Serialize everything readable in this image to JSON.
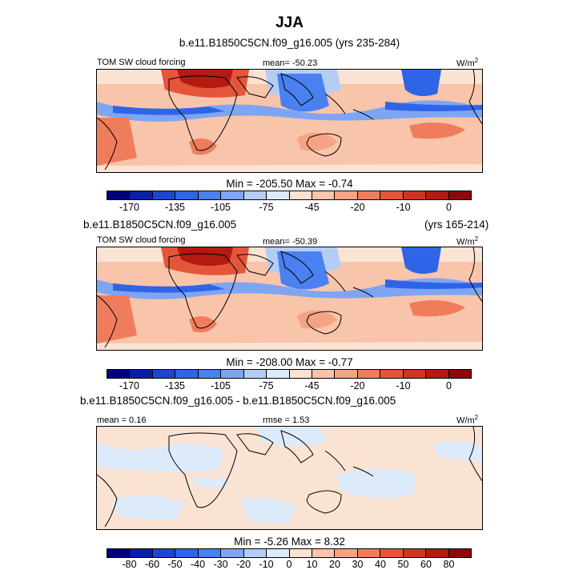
{
  "title": "JJA",
  "panels": [
    {
      "case_title": "b.e11.B1850C5CN.f09_g16.005 (yrs 235-284)",
      "left_label": "TOM SW cloud forcing",
      "mean_label": "mean= -50.23",
      "units": "W/m",
      "units_sup": "2",
      "minmax": "Min = -205.50 Max =  -0.74",
      "colorbar_ticks": [
        "-170",
        "-135",
        "-105",
        "-75",
        "-45",
        "-20",
        "-10",
        "0"
      ]
    },
    {
      "case_title": "b.e11.B1850C5CN.f09_g16.005",
      "case_years": "(yrs 165-214)",
      "left_label": "TOM SW cloud forcing",
      "mean_label": "mean= -50.39",
      "units": "W/m",
      "units_sup": "2",
      "minmax": "Min = -208.00 Max =  -0.77",
      "colorbar_ticks": [
        "-170",
        "-135",
        "-105",
        "-75",
        "-45",
        "-20",
        "-10",
        "0"
      ]
    },
    {
      "case_title": "b.e11.B1850C5CN.f09_g16.005 - b.e11.B1850C5CN.f09_g16.005",
      "mean_label": "mean =   0.16",
      "rmse_label": "rmse =   1.53",
      "units": "W/m",
      "units_sup": "2",
      "minmax": "Min =  -5.26 Max =   8.32",
      "colorbar_ticks": [
        "-80",
        "-60",
        "-50",
        "-40",
        "-30",
        "-20",
        "-10",
        "0",
        "10",
        "20",
        "30",
        "40",
        "50",
        "60",
        "80"
      ]
    }
  ],
  "colors": {
    "abs_scale": [
      "#00007f",
      "#0a1fa8",
      "#1c46cf",
      "#2e64e8",
      "#4a80f0",
      "#7ea5f4",
      "#b4cdf7",
      "#ddeafa",
      "#fbe3d3",
      "#f8c4aa",
      "#f4a483",
      "#ef7d5c",
      "#e4553a",
      "#cf3322",
      "#b21a12",
      "#8c0a0a"
    ],
    "diff_scale": [
      "#00007f",
      "#0a1fa8",
      "#1c46cf",
      "#2e64e8",
      "#4a80f0",
      "#7ea5f4",
      "#b4cdf7",
      "#ddeafa",
      "#fbe3d3",
      "#f8c4aa",
      "#f4a483",
      "#ef7d5c",
      "#e4553a",
      "#cf3322",
      "#b21a12",
      "#8c0a0a"
    ]
  }
}
